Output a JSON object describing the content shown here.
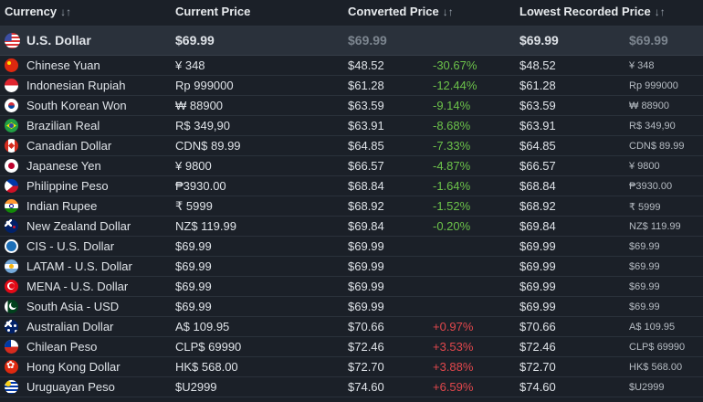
{
  "header": {
    "currency": "Currency",
    "current_price": "Current Price",
    "converted_price": "Converted Price",
    "lowest_recorded": "Lowest Recorded Price",
    "sort_glyph": "↓↑"
  },
  "base": {
    "flag": "us",
    "name": "U.S. Dollar",
    "current": "$69.99",
    "converted": "$69.99",
    "lowest": "$69.99",
    "lowest_local": "$69.99"
  },
  "rows": [
    {
      "flag": "cn",
      "name": "Chinese Yuan",
      "current": "¥ 348",
      "converted": "$48.52",
      "diff": "-30.67%",
      "diff_sign": "neg",
      "lowest": "$48.52",
      "lowest_local": "¥ 348"
    },
    {
      "flag": "id",
      "name": "Indonesian Rupiah",
      "current": "Rp 999000",
      "converted": "$61.28",
      "diff": "-12.44%",
      "diff_sign": "neg",
      "lowest": "$61.28",
      "lowest_local": "Rp 999000"
    },
    {
      "flag": "kr",
      "name": "South Korean Won",
      "current": "₩ 88900",
      "converted": "$63.59",
      "diff": "-9.14%",
      "diff_sign": "neg",
      "lowest": "$63.59",
      "lowest_local": "₩ 88900"
    },
    {
      "flag": "br",
      "name": "Brazilian Real",
      "current": "R$ 349,90",
      "converted": "$63.91",
      "diff": "-8.68%",
      "diff_sign": "neg",
      "lowest": "$63.91",
      "lowest_local": "R$ 349,90"
    },
    {
      "flag": "ca",
      "name": "Canadian Dollar",
      "current": "CDN$ 89.99",
      "converted": "$64.85",
      "diff": "-7.33%",
      "diff_sign": "neg",
      "lowest": "$64.85",
      "lowest_local": "CDN$ 89.99"
    },
    {
      "flag": "jp",
      "name": "Japanese Yen",
      "current": "¥ 9800",
      "converted": "$66.57",
      "diff": "-4.87%",
      "diff_sign": "neg",
      "lowest": "$66.57",
      "lowest_local": "¥ 9800"
    },
    {
      "flag": "ph",
      "name": "Philippine Peso",
      "current": "₱3930.00",
      "converted": "$68.84",
      "diff": "-1.64%",
      "diff_sign": "neg",
      "lowest": "$68.84",
      "lowest_local": "₱3930.00"
    },
    {
      "flag": "in",
      "name": "Indian Rupee",
      "current": "₹ 5999",
      "converted": "$68.92",
      "diff": "-1.52%",
      "diff_sign": "neg",
      "lowest": "$68.92",
      "lowest_local": "₹ 5999"
    },
    {
      "flag": "nz",
      "name": "New Zealand Dollar",
      "current": "NZ$ 119.99",
      "converted": "$69.84",
      "diff": "-0.20%",
      "diff_sign": "neg",
      "lowest": "$69.84",
      "lowest_local": "NZ$ 119.99"
    },
    {
      "flag": "cis",
      "name": "CIS - U.S. Dollar",
      "current": "$69.99",
      "converted": "$69.99",
      "diff": "",
      "diff_sign": "",
      "lowest": "$69.99",
      "lowest_local": "$69.99"
    },
    {
      "flag": "latam",
      "name": "LATAM - U.S. Dollar",
      "current": "$69.99",
      "converted": "$69.99",
      "diff": "",
      "diff_sign": "",
      "lowest": "$69.99",
      "lowest_local": "$69.99"
    },
    {
      "flag": "mena",
      "name": "MENA - U.S. Dollar",
      "current": "$69.99",
      "converted": "$69.99",
      "diff": "",
      "diff_sign": "",
      "lowest": "$69.99",
      "lowest_local": "$69.99"
    },
    {
      "flag": "sa",
      "name": "South Asia - USD",
      "current": "$69.99",
      "converted": "$69.99",
      "diff": "",
      "diff_sign": "",
      "lowest": "$69.99",
      "lowest_local": "$69.99"
    },
    {
      "flag": "au",
      "name": "Australian Dollar",
      "current": "A$ 109.95",
      "converted": "$70.66",
      "diff": "+0.97%",
      "diff_sign": "pos",
      "lowest": "$70.66",
      "lowest_local": "A$ 109.95"
    },
    {
      "flag": "cl",
      "name": "Chilean Peso",
      "current": "CLP$ 69990",
      "converted": "$72.46",
      "diff": "+3.53%",
      "diff_sign": "pos",
      "lowest": "$72.46",
      "lowest_local": "CLP$ 69990"
    },
    {
      "flag": "hk",
      "name": "Hong Kong Dollar",
      "current": "HK$ 568.00",
      "converted": "$72.70",
      "diff": "+3.88%",
      "diff_sign": "pos",
      "lowest": "$72.70",
      "lowest_local": "HK$ 568.00"
    },
    {
      "flag": "uy",
      "name": "Uruguayan Peso",
      "current": "$U2999",
      "converted": "$74.60",
      "diff": "+6.59%",
      "diff_sign": "pos",
      "lowest": "$74.60",
      "lowest_local": "$U2999"
    }
  ]
}
